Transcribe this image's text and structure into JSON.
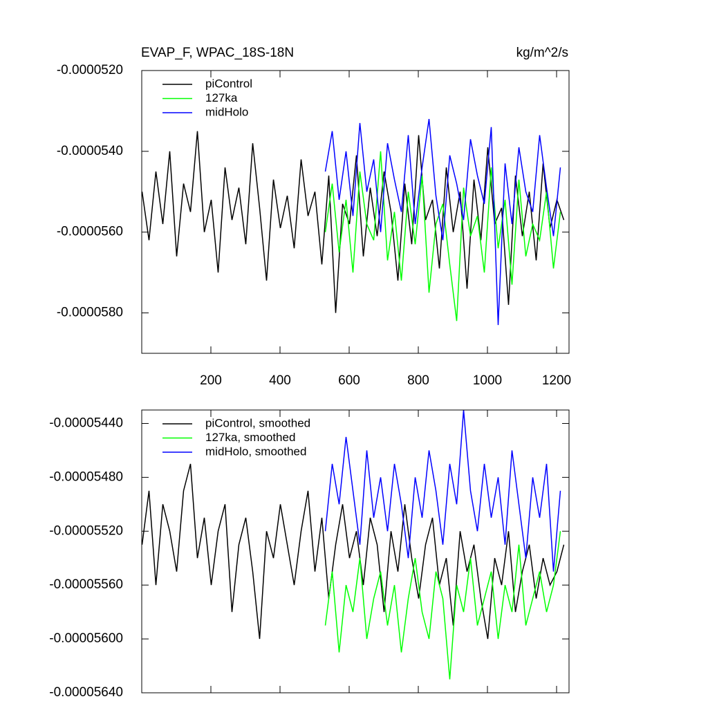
{
  "chart_data": [
    {
      "type": "line",
      "title": "EVAP_F, WPAC_18S-18N",
      "units": "kg/m^2/s",
      "xlim": [
        0,
        1236
      ],
      "ylim": [
        -5.9e-05,
        -5.2e-05
      ],
      "xticks": [
        200,
        400,
        600,
        800,
        1000,
        1200
      ],
      "xtick_labels": true,
      "yticks": [
        {
          "value": -5.2e-05,
          "label": "-0.0000520"
        },
        {
          "value": -5.4e-05,
          "label": "-0.0000540"
        },
        {
          "value": -5.6e-05,
          "label": "-0.0000560"
        },
        {
          "value": -5.8e-05,
          "label": "-0.0000580"
        }
      ],
      "legend": "upper left",
      "series": [
        {
          "name": "piControl",
          "color": "#000000",
          "x": [
            1,
            21,
            41,
            61,
            81,
            101,
            121,
            141,
            161,
            181,
            201,
            221,
            241,
            261,
            281,
            301,
            321,
            341,
            361,
            381,
            401,
            421,
            441,
            461,
            481,
            501,
            521,
            541,
            561,
            581,
            601,
            621,
            641,
            661,
            681,
            701,
            721,
            741,
            761,
            781,
            801,
            821,
            841,
            861,
            881,
            901,
            921,
            941,
            961,
            981,
            1001,
            1021,
            1041,
            1061,
            1081,
            1101,
            1121,
            1141,
            1161,
            1181,
            1201,
            1221
          ],
          "values": [
            -5.5e-05,
            -5.62e-05,
            -5.45e-05,
            -5.58e-05,
            -5.4e-05,
            -5.66e-05,
            -5.48e-05,
            -5.55e-05,
            -5.35e-05,
            -5.6e-05,
            -5.52e-05,
            -5.7e-05,
            -5.44e-05,
            -5.57e-05,
            -5.49e-05,
            -5.63e-05,
            -5.38e-05,
            -5.54e-05,
            -5.72e-05,
            -5.47e-05,
            -5.59e-05,
            -5.51e-05,
            -5.64e-05,
            -5.42e-05,
            -5.56e-05,
            -5.5e-05,
            -5.68e-05,
            -5.46e-05,
            -5.8e-05,
            -5.53e-05,
            -5.58e-05,
            -5.41e-05,
            -5.66e-05,
            -5.49e-05,
            -5.61e-05,
            -5.45e-05,
            -5.55e-05,
            -5.72e-05,
            -5.48e-05,
            -5.63e-05,
            -5.36e-05,
            -5.57e-05,
            -5.52e-05,
            -5.69e-05,
            -5.44e-05,
            -5.6e-05,
            -5.5e-05,
            -5.74e-05,
            -5.47e-05,
            -5.62e-05,
            -5.39e-05,
            -5.58e-05,
            -5.54e-05,
            -5.78e-05,
            -5.46e-05,
            -5.61e-05,
            -5.5e-05,
            -5.67e-05,
            -5.43e-05,
            -5.59e-05,
            -5.52e-05,
            -5.57e-05
          ]
        },
        {
          "name": "127ka",
          "color": "#00ff00",
          "x": [
            531,
            551,
            571,
            591,
            611,
            631,
            651,
            671,
            691,
            711,
            731,
            751,
            771,
            791,
            811,
            831,
            851,
            871,
            891,
            911,
            931,
            951,
            971,
            991,
            1011,
            1031,
            1051,
            1071,
            1091,
            1111,
            1131,
            1151,
            1171,
            1191,
            1211
          ],
          "values": [
            -5.6e-05,
            -5.48e-05,
            -5.65e-05,
            -5.52e-05,
            -5.7e-05,
            -5.45e-05,
            -5.58e-05,
            -5.62e-05,
            -5.4e-05,
            -5.67e-05,
            -5.55e-05,
            -5.72e-05,
            -5.5e-05,
            -5.63e-05,
            -5.46e-05,
            -5.75e-05,
            -5.58e-05,
            -5.53e-05,
            -5.68e-05,
            -5.82e-05,
            -5.49e-05,
            -5.61e-05,
            -5.56e-05,
            -5.7e-05,
            -5.44e-05,
            -5.64e-05,
            -5.52e-05,
            -5.73e-05,
            -5.47e-05,
            -5.66e-05,
            -5.58e-05,
            -5.62e-05,
            -5.5e-05,
            -5.69e-05,
            -5.55e-05
          ]
        },
        {
          "name": "midHolo",
          "color": "#0000ff",
          "x": [
            531,
            551,
            571,
            591,
            611,
            631,
            651,
            671,
            691,
            711,
            731,
            751,
            771,
            791,
            811,
            831,
            851,
            871,
            891,
            911,
            931,
            951,
            971,
            991,
            1011,
            1031,
            1051,
            1071,
            1091,
            1111,
            1131,
            1151,
            1171,
            1191,
            1211
          ],
          "values": [
            -5.45e-05,
            -5.35e-05,
            -5.52e-05,
            -5.4e-05,
            -5.56e-05,
            -5.33e-05,
            -5.5e-05,
            -5.42e-05,
            -5.6e-05,
            -5.38e-05,
            -5.47e-05,
            -5.55e-05,
            -5.36e-05,
            -5.58e-05,
            -5.44e-05,
            -5.32e-05,
            -5.51e-05,
            -5.62e-05,
            -5.41e-05,
            -5.48e-05,
            -5.57e-05,
            -5.37e-05,
            -5.46e-05,
            -5.53e-05,
            -5.34e-05,
            -5.83e-05,
            -5.43e-05,
            -5.58e-05,
            -5.39e-05,
            -5.5e-05,
            -5.55e-05,
            -5.36e-05,
            -5.49e-05,
            -5.61e-05,
            -5.44e-05
          ]
        }
      ]
    },
    {
      "type": "line",
      "xlim": [
        0,
        1236
      ],
      "ylim": [
        -5.64e-05,
        -5.43e-05
      ],
      "xticks": [
        200,
        400,
        600,
        800,
        1000,
        1200
      ],
      "xtick_labels": false,
      "yticks": [
        {
          "value": -5.44e-05,
          "label": "-0.00005440"
        },
        {
          "value": -5.48e-05,
          "label": "-0.00005480"
        },
        {
          "value": -5.52e-05,
          "label": "-0.00005520"
        },
        {
          "value": -5.56e-05,
          "label": "-0.00005560"
        },
        {
          "value": -5.6e-05,
          "label": "-0.00005600"
        },
        {
          "value": -5.64e-05,
          "label": "-0.00005640"
        }
      ],
      "legend": "upper left",
      "series": [
        {
          "name": "piControl, smoothed",
          "color": "#000000",
          "x": [
            1,
            21,
            41,
            61,
            81,
            101,
            121,
            141,
            161,
            181,
            201,
            221,
            241,
            261,
            281,
            301,
            321,
            341,
            361,
            381,
            401,
            421,
            441,
            461,
            481,
            501,
            521,
            541,
            561,
            581,
            601,
            621,
            641,
            661,
            681,
            701,
            721,
            741,
            761,
            781,
            801,
            821,
            841,
            861,
            881,
            901,
            921,
            941,
            961,
            981,
            1001,
            1021,
            1041,
            1061,
            1081,
            1101,
            1121,
            1141,
            1161,
            1181,
            1201,
            1221
          ],
          "values": [
            -5.53e-05,
            -5.49e-05,
            -5.56e-05,
            -5.5e-05,
            -5.52e-05,
            -5.55e-05,
            -5.49e-05,
            -5.47e-05,
            -5.54e-05,
            -5.51e-05,
            -5.56e-05,
            -5.52e-05,
            -5.5e-05,
            -5.58e-05,
            -5.53e-05,
            -5.51e-05,
            -5.55e-05,
            -5.6e-05,
            -5.52e-05,
            -5.54e-05,
            -5.5e-05,
            -5.53e-05,
            -5.56e-05,
            -5.52e-05,
            -5.49e-05,
            -5.55e-05,
            -5.51e-05,
            -5.57e-05,
            -5.53e-05,
            -5.5e-05,
            -5.54e-05,
            -5.52e-05,
            -5.56e-05,
            -5.51e-05,
            -5.53e-05,
            -5.58e-05,
            -5.52e-05,
            -5.55e-05,
            -5.5e-05,
            -5.54e-05,
            -5.57e-05,
            -5.53e-05,
            -5.51e-05,
            -5.56e-05,
            -5.54e-05,
            -5.59e-05,
            -5.52e-05,
            -5.55e-05,
            -5.53e-05,
            -5.57e-05,
            -5.6e-05,
            -5.54e-05,
            -5.56e-05,
            -5.52e-05,
            -5.58e-05,
            -5.55e-05,
            -5.53e-05,
            -5.57e-05,
            -5.54e-05,
            -5.56e-05,
            -5.55e-05,
            -5.53e-05
          ]
        },
        {
          "name": "127ka, smoothed",
          "color": "#00ff00",
          "x": [
            531,
            551,
            571,
            591,
            611,
            631,
            651,
            671,
            691,
            711,
            731,
            751,
            771,
            791,
            811,
            831,
            851,
            871,
            891,
            911,
            931,
            951,
            971,
            991,
            1011,
            1031,
            1051,
            1071,
            1091,
            1111,
            1131,
            1151,
            1171,
            1191,
            1211
          ],
          "values": [
            -5.59e-05,
            -5.55e-05,
            -5.61e-05,
            -5.56e-05,
            -5.58e-05,
            -5.54e-05,
            -5.6e-05,
            -5.57e-05,
            -5.55e-05,
            -5.59e-05,
            -5.56e-05,
            -5.61e-05,
            -5.57e-05,
            -5.54e-05,
            -5.58e-05,
            -5.6e-05,
            -5.55e-05,
            -5.57e-05,
            -5.63e-05,
            -5.56e-05,
            -5.58e-05,
            -5.54e-05,
            -5.59e-05,
            -5.57e-05,
            -5.55e-05,
            -5.6e-05,
            -5.56e-05,
            -5.58e-05,
            -5.53e-05,
            -5.59e-05,
            -5.57e-05,
            -5.55e-05,
            -5.58e-05,
            -5.56e-05,
            -5.52e-05
          ]
        },
        {
          "name": "midHolo, smoothed",
          "color": "#0000ff",
          "x": [
            531,
            551,
            571,
            591,
            611,
            631,
            651,
            671,
            691,
            711,
            731,
            751,
            771,
            791,
            811,
            831,
            851,
            871,
            891,
            911,
            931,
            951,
            971,
            991,
            1011,
            1031,
            1051,
            1071,
            1091,
            1111,
            1131,
            1151,
            1171,
            1191,
            1211
          ],
          "values": [
            -5.52e-05,
            -5.47e-05,
            -5.5e-05,
            -5.45e-05,
            -5.49e-05,
            -5.53e-05,
            -5.46e-05,
            -5.51e-05,
            -5.48e-05,
            -5.52e-05,
            -5.47e-05,
            -5.5e-05,
            -5.54e-05,
            -5.48e-05,
            -5.51e-05,
            -5.46e-05,
            -5.49e-05,
            -5.53e-05,
            -5.47e-05,
            -5.5e-05,
            -5.43e-05,
            -5.49e-05,
            -5.52e-05,
            -5.47e-05,
            -5.51e-05,
            -5.48e-05,
            -5.53e-05,
            -5.46e-05,
            -5.5e-05,
            -5.54e-05,
            -5.48e-05,
            -5.51e-05,
            -5.47e-05,
            -5.55e-05,
            -5.49e-05
          ]
        }
      ]
    }
  ]
}
